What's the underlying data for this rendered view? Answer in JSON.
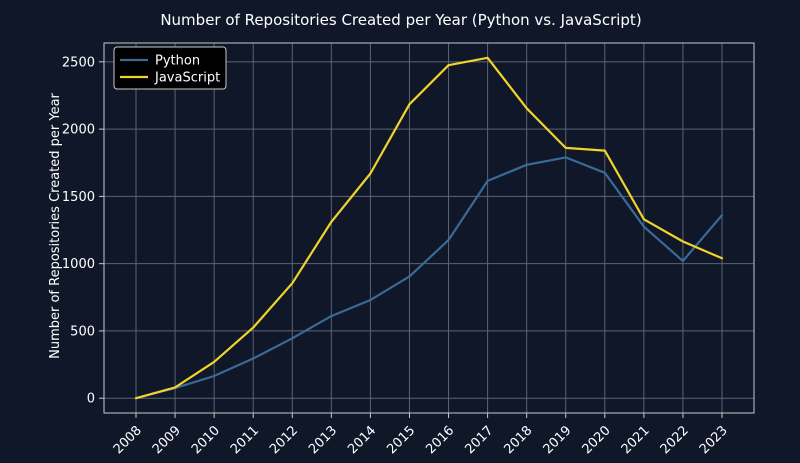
{
  "chart_data": {
    "type": "line",
    "title": "Number of Repositories Created per Year (Python vs. JavaScript)",
    "xlabel": "",
    "ylabel": "Number of Repositories Created per Year",
    "categories": [
      "2008",
      "2009",
      "2010",
      "2011",
      "2012",
      "2013",
      "2014",
      "2015",
      "2016",
      "2017",
      "2018",
      "2019",
      "2020",
      "2021",
      "2022",
      "2023"
    ],
    "yticks": [
      "0",
      "500",
      "1000",
      "1500",
      "2000",
      "2500"
    ],
    "ytick_values": [
      0,
      500,
      1000,
      1500,
      2000,
      2500
    ],
    "ylim": [
      -110,
      2640
    ],
    "grid": true,
    "legend_position": "top-left",
    "background": "#0f1729",
    "series": [
      {
        "name": "Python",
        "color": "#3a6a96",
        "values": [
          0,
          75,
          165,
          295,
          445,
          610,
          730,
          905,
          1175,
          1615,
          1735,
          1790,
          1675,
          1275,
          1020,
          1360
        ]
      },
      {
        "name": "JavaScript",
        "color": "#f0d42a",
        "values": [
          0,
          80,
          270,
          525,
          855,
          1310,
          1670,
          2185,
          2475,
          2530,
          2155,
          1860,
          1840,
          1330,
          1165,
          1040
        ]
      }
    ]
  }
}
